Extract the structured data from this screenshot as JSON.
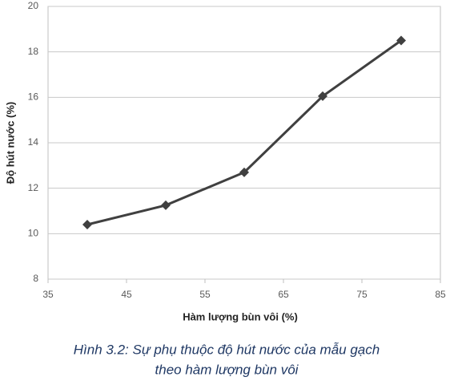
{
  "chart_data": {
    "type": "line",
    "x": [
      40,
      50,
      60,
      70,
      80
    ],
    "values": [
      10.4,
      11.25,
      12.7,
      16.05,
      18.5
    ],
    "color": "#404040",
    "xlim": [
      35,
      85
    ],
    "xticks": [
      35,
      45,
      55,
      65,
      75,
      85
    ],
    "ylim": [
      8,
      20
    ],
    "yticks": [
      8,
      10,
      12,
      14,
      16,
      18,
      20
    ],
    "grid": true,
    "x_label": "Hàm lượng bùn vôi (%)",
    "y_label": "Độ hút nước (%)",
    "caption": [
      "Hình 3.2: Sự phụ thuộc độ hút nước của mẫu gạch",
      "theo hàm lượng bùn vôi"
    ]
  }
}
